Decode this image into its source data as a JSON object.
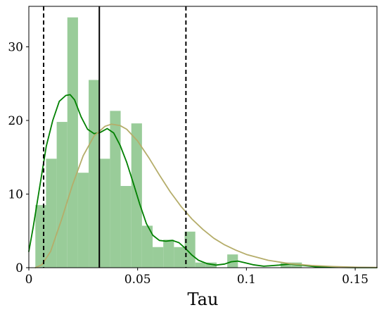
{
  "chart_data": {
    "type": "bar",
    "title": "",
    "xlabel": "Tau",
    "ylabel": "",
    "xlim": [
      0,
      0.16
    ],
    "ylim": [
      0,
      35.5
    ],
    "grid": false,
    "xticks": [
      0,
      0.05,
      0.1,
      0.15
    ],
    "xtick_labels": [
      "0",
      "0.05",
      "0.1",
      "0.15"
    ],
    "yticks": [
      0,
      10,
      20,
      30
    ],
    "ytick_labels": [
      "0",
      "10",
      "20",
      "30"
    ],
    "histogram": {
      "color": "#99cc99",
      "bins": [
        {
          "x0": 0.003,
          "x1": 0.0079,
          "value": 8.5
        },
        {
          "x0": 0.0079,
          "x1": 0.0128,
          "value": 14.8
        },
        {
          "x0": 0.0128,
          "x1": 0.0177,
          "value": 19.8
        },
        {
          "x0": 0.0177,
          "x1": 0.0226,
          "value": 34.0
        },
        {
          "x0": 0.0226,
          "x1": 0.0275,
          "value": 12.9
        },
        {
          "x0": 0.0275,
          "x1": 0.0324,
          "value": 25.5
        },
        {
          "x0": 0.0324,
          "x1": 0.0373,
          "value": 14.8
        },
        {
          "x0": 0.0373,
          "x1": 0.0422,
          "value": 21.3
        },
        {
          "x0": 0.0422,
          "x1": 0.0471,
          "value": 11.1
        },
        {
          "x0": 0.0471,
          "x1": 0.052,
          "value": 19.6
        },
        {
          "x0": 0.052,
          "x1": 0.0569,
          "value": 5.7
        },
        {
          "x0": 0.0569,
          "x1": 0.0618,
          "value": 2.8
        },
        {
          "x0": 0.0618,
          "x1": 0.0667,
          "value": 3.8
        },
        {
          "x0": 0.0667,
          "x1": 0.0716,
          "value": 2.8
        },
        {
          "x0": 0.0716,
          "x1": 0.0765,
          "value": 4.9
        },
        {
          "x0": 0.0765,
          "x1": 0.0814,
          "value": 0.7
        },
        {
          "x0": 0.0814,
          "x1": 0.0863,
          "value": 0.7
        },
        {
          "x0": 0.0912,
          "x1": 0.0961,
          "value": 1.8
        },
        {
          "x0": 0.1157,
          "x1": 0.1206,
          "value": 0.7
        },
        {
          "x0": 0.1206,
          "x1": 0.1255,
          "value": 0.7
        }
      ]
    },
    "series": [
      {
        "type": "line",
        "color": "#008000",
        "points": [
          [
            0,
            2.2
          ],
          [
            0.002,
            5.5
          ],
          [
            0.005,
            11
          ],
          [
            0.008,
            16.5
          ],
          [
            0.011,
            20
          ],
          [
            0.014,
            22.6
          ],
          [
            0.017,
            23.4
          ],
          [
            0.019,
            23.5
          ],
          [
            0.021,
            22.8
          ],
          [
            0.024,
            20.5
          ],
          [
            0.027,
            18.8
          ],
          [
            0.03,
            18.2
          ],
          [
            0.033,
            18.4
          ],
          [
            0.036,
            18.9
          ],
          [
            0.039,
            18.3
          ],
          [
            0.042,
            16.6
          ],
          [
            0.045,
            14.3
          ],
          [
            0.048,
            11.5
          ],
          [
            0.051,
            8.6
          ],
          [
            0.054,
            6.0
          ],
          [
            0.057,
            4.4
          ],
          [
            0.06,
            3.7
          ],
          [
            0.063,
            3.6
          ],
          [
            0.066,
            3.7
          ],
          [
            0.069,
            3.4
          ],
          [
            0.072,
            2.6
          ],
          [
            0.075,
            1.7
          ],
          [
            0.078,
            1.0
          ],
          [
            0.082,
            0.55
          ],
          [
            0.086,
            0.35
          ],
          [
            0.09,
            0.5
          ],
          [
            0.093,
            0.8
          ],
          [
            0.096,
            0.9
          ],
          [
            0.099,
            0.7
          ],
          [
            0.103,
            0.4
          ],
          [
            0.108,
            0.2
          ],
          [
            0.115,
            0.35
          ],
          [
            0.12,
            0.5
          ],
          [
            0.125,
            0.35
          ],
          [
            0.132,
            0.12
          ],
          [
            0.14,
            0.05
          ],
          [
            0.15,
            0.02
          ],
          [
            0.16,
            0.01
          ]
        ]
      },
      {
        "type": "line",
        "color": "#b5ad6a",
        "points": [
          [
            0.003,
            0
          ],
          [
            0.006,
            0.4
          ],
          [
            0.01,
            2.2
          ],
          [
            0.015,
            6.5
          ],
          [
            0.02,
            11.2
          ],
          [
            0.025,
            15.2
          ],
          [
            0.03,
            17.9
          ],
          [
            0.035,
            19.2
          ],
          [
            0.038,
            19.5
          ],
          [
            0.042,
            19.3
          ],
          [
            0.045,
            18.8
          ],
          [
            0.05,
            17.2
          ],
          [
            0.055,
            15.0
          ],
          [
            0.06,
            12.6
          ],
          [
            0.065,
            10.3
          ],
          [
            0.07,
            8.3
          ],
          [
            0.075,
            6.6
          ],
          [
            0.08,
            5.2
          ],
          [
            0.085,
            4.0
          ],
          [
            0.09,
            3.1
          ],
          [
            0.095,
            2.4
          ],
          [
            0.1,
            1.8
          ],
          [
            0.11,
            1.0
          ],
          [
            0.12,
            0.55
          ],
          [
            0.13,
            0.3
          ],
          [
            0.14,
            0.15
          ],
          [
            0.15,
            0.07
          ],
          [
            0.16,
            0.03
          ]
        ]
      }
    ],
    "vlines": [
      {
        "x": 0.0068,
        "style": "dashed",
        "color": "#000000"
      },
      {
        "x": 0.0324,
        "style": "solid",
        "color": "#000000"
      },
      {
        "x": 0.0722,
        "style": "dashed",
        "color": "#000000"
      }
    ]
  }
}
